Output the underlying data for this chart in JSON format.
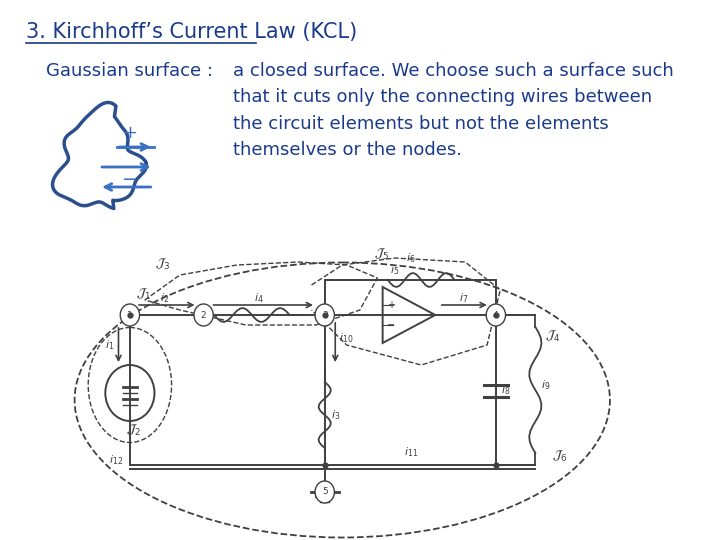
{
  "title": "3. Kirchhoff’s Current Law (KCL)",
  "title_color": "#1a3a8c",
  "gaussian_label": "Gaussian surface :",
  "body_text": "a closed surface. We choose such a surface such\nthat it cuts only the connecting wires between\nthe circuit elements but not the elements\nthemselves or the nodes.",
  "text_color": "#1a3a8c",
  "text_font_size": 13,
  "title_font_size": 15,
  "bg_color": "#ffffff",
  "blob_color": "#2b4f8c",
  "arrow_color": "#3a6fc4",
  "circuit_color": "#404040"
}
